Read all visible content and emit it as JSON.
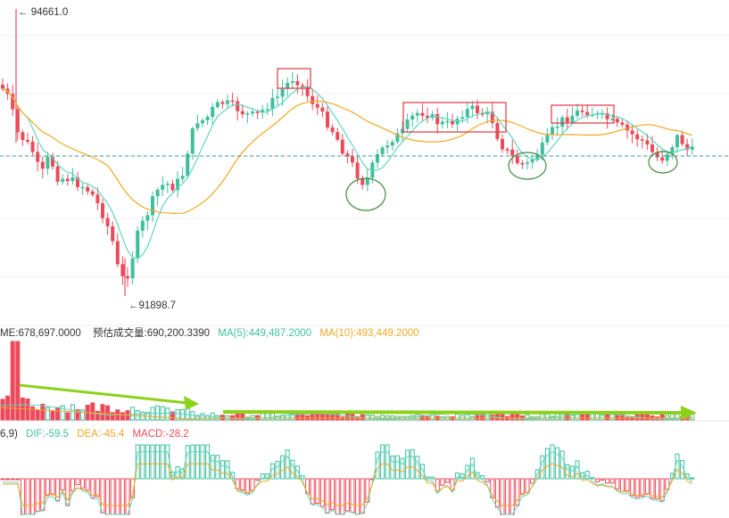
{
  "colors": {
    "up": "#3fbf9d",
    "down": "#ec4a5a",
    "ma_fast": "#5fd6c0",
    "ma_slow": "#f0a923",
    "dashed_price": "#3a9b8a",
    "box": "#e0363f",
    "circle": "#3d8a3a",
    "arrow": "#8cd11a",
    "grid": "#efefef",
    "text": "#333333"
  },
  "price_panel": {
    "high_label": "94661.0",
    "low_label": "91898.7",
    "high_arrow": "←",
    "low_arrow": "←"
  },
  "volume_panel": {
    "legend": [
      {
        "text": "ME:678,697.0000",
        "color_key": "text"
      },
      {
        "text": "预估成交量:690,200.3390",
        "color_key": "text"
      },
      {
        "text": "MA(5):449,487.2000",
        "color_key": "ma_fast"
      },
      {
        "text": "MA(10):493,449.2000",
        "color_key": "ma_slow"
      }
    ]
  },
  "macd_panel": {
    "legend": [
      {
        "text": "6,9)",
        "color_key": "text"
      },
      {
        "text": "DIF:-59.5",
        "color_key": "ma_fast"
      },
      {
        "text": "DEA:-45.4",
        "color_key": "ma_slow"
      },
      {
        "text": "MACD:-28.2",
        "color_key": "down"
      }
    ]
  },
  "chart_data": {
    "type": "candlestick",
    "high": 94661.0,
    "low": 91898.7,
    "series": [
      {
        "name": "MA(5)",
        "values": [
          449487.2
        ]
      },
      {
        "name": "MA(10)",
        "values": [
          493449.2
        ]
      },
      {
        "name": "DIF",
        "values": [
          -59.5
        ]
      },
      {
        "name": "DEA",
        "values": [
          -45.4
        ]
      },
      {
        "name": "MACD",
        "values": [
          -28.2
        ]
      }
    ],
    "volume_last": 678697.0,
    "volume_estimated": 690200.339
  }
}
